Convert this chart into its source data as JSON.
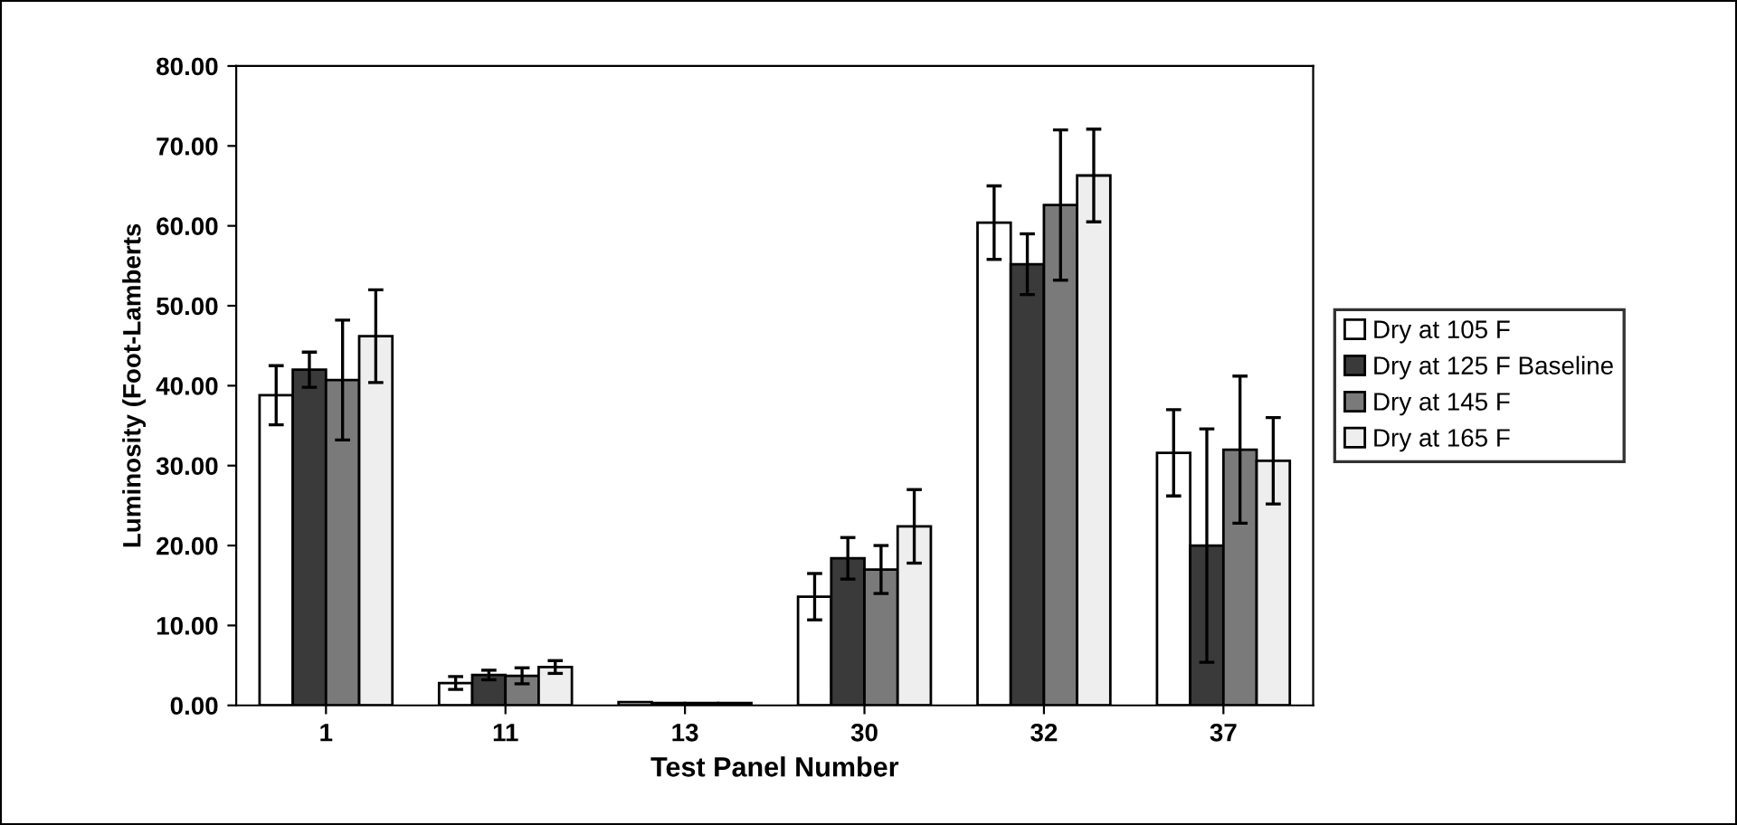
{
  "chart_data": {
    "type": "bar",
    "xlabel": "Test Panel Number",
    "ylabel": "Luminosity (Foot-Lamberts",
    "categories": [
      "1",
      "11",
      "13",
      "30",
      "32",
      "37"
    ],
    "series": [
      {
        "name": "Dry at 105 F",
        "color": "#ffffff",
        "values": [
          38.8,
          2.8,
          0.4,
          13.6,
          60.4,
          31.6
        ],
        "errors": [
          3.7,
          0.8,
          null,
          2.9,
          4.6,
          5.4
        ]
      },
      {
        "name": "Dry at 125 F Baseline",
        "color": "#3a3a3a",
        "values": [
          42.0,
          3.8,
          0.3,
          18.4,
          55.2,
          20.0
        ],
        "errors": [
          2.2,
          0.6,
          null,
          2.6,
          3.8,
          14.6
        ]
      },
      {
        "name": "Dry at 145 F",
        "color": "#7a7a7a",
        "values": [
          40.7,
          3.7,
          0.3,
          17.0,
          62.6,
          32.0
        ],
        "errors": [
          7.5,
          1.0,
          null,
          3.0,
          9.4,
          9.2
        ]
      },
      {
        "name": "Dry at 165 F",
        "color": "#eeeeee",
        "values": [
          46.2,
          4.8,
          0.3,
          22.4,
          66.3,
          30.6
        ],
        "errors": [
          5.8,
          0.8,
          null,
          4.6,
          5.8,
          5.4
        ]
      }
    ],
    "ylim": [
      0,
      80
    ],
    "yticks": [
      {
        "value": 0,
        "label": "0.00"
      },
      {
        "value": 10,
        "label": "10.00"
      },
      {
        "value": 20,
        "label": "20.00"
      },
      {
        "value": 30,
        "label": "30.00"
      },
      {
        "value": 40,
        "label": "40.00"
      },
      {
        "value": 50,
        "label": "50.00"
      },
      {
        "value": 60,
        "label": "60.00"
      },
      {
        "value": 70,
        "label": "70.00"
      },
      {
        "value": 80,
        "label": "80.00"
      }
    ],
    "grid": false,
    "legend": "right"
  }
}
